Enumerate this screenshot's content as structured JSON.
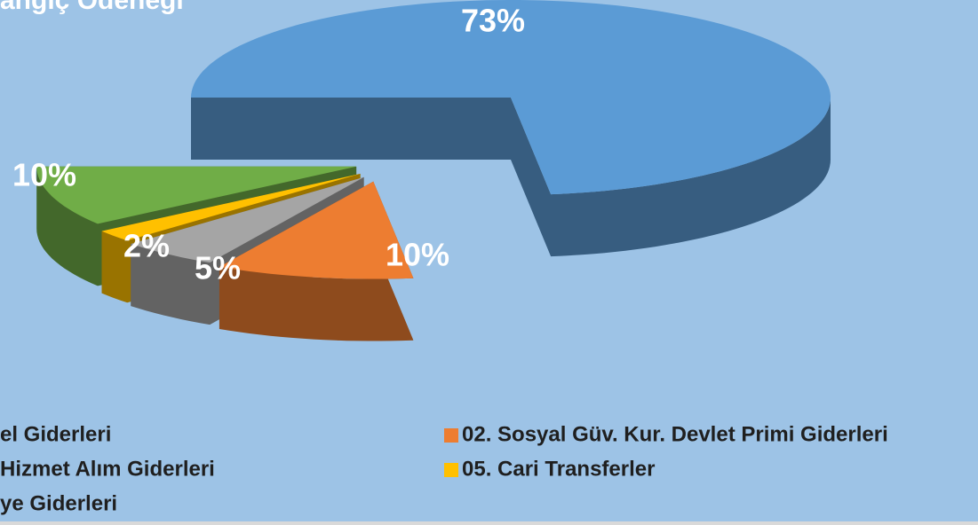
{
  "chart_data": {
    "type": "pie3d",
    "title": "angiç Ödeneği",
    "categories": [
      "el Giderleri",
      "02. Sosyal Güv. Kur. Devlet Primi Giderleri",
      "Hizmet Alım Giderleri",
      "05. Cari Transferler",
      "ye Giderleri"
    ],
    "values": [
      73,
      10,
      5,
      2,
      10
    ],
    "value_labels": [
      "73%",
      "10%",
      "5%",
      "2%",
      "10%"
    ],
    "colors": [
      "#5b9bd5",
      "#ed7d31",
      "#a5a5a5",
      "#ffc000",
      "#70ad47"
    ],
    "legend": "bottom"
  }
}
